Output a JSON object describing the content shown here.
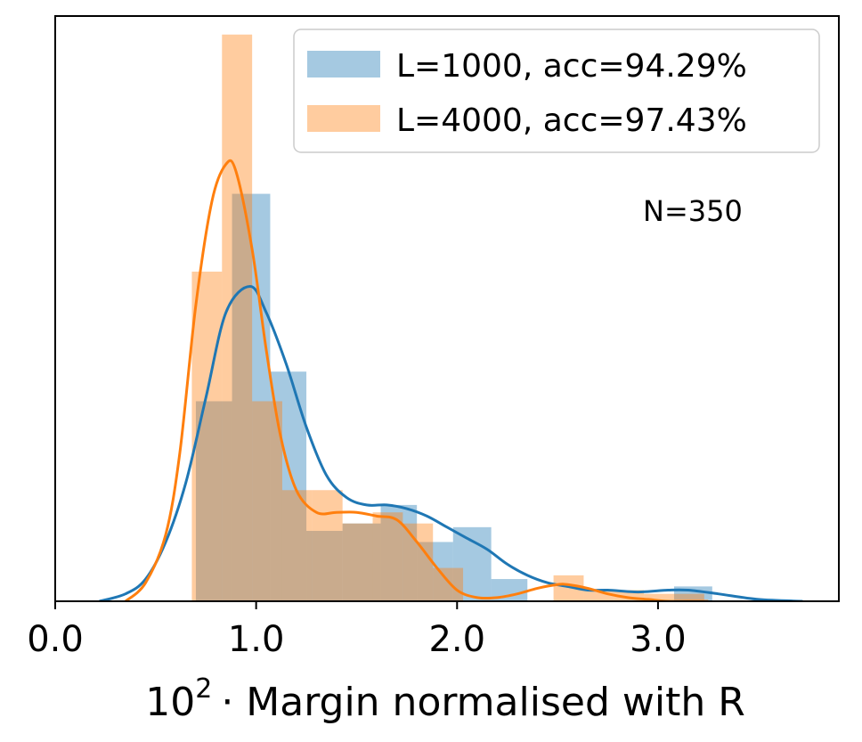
{
  "chart_data": {
    "type": "histogram",
    "xlim": [
      0.0,
      3.9
    ],
    "ylim": [
      0,
      1.58
    ],
    "xlabel_base": "10",
    "xlabel_exp": "2",
    "xlabel_rest": "· Margin normalised with R",
    "xticks": [
      0.0,
      1.0,
      2.0,
      3.0
    ],
    "xtick_labels": [
      "0.0",
      "1.0",
      "2.0",
      "3.0"
    ],
    "annotation": "N=350",
    "legend_position": "upper right",
    "series": [
      {
        "name": "L=1000, acc=94.29%",
        "color": "#1f77b4",
        "bar_alpha": 0.4,
        "bins": [
          {
            "x0": 0.7,
            "x1": 0.88,
            "value": 0.54
          },
          {
            "x0": 0.88,
            "x1": 1.07,
            "value": 1.1
          },
          {
            "x0": 1.07,
            "x1": 1.25,
            "value": 0.62
          },
          {
            "x0": 1.25,
            "x1": 1.43,
            "value": 0.19
          },
          {
            "x0": 1.43,
            "x1": 1.62,
            "value": 0.21
          },
          {
            "x0": 1.62,
            "x1": 1.8,
            "value": 0.26
          },
          {
            "x0": 1.8,
            "x1": 1.98,
            "value": 0.16
          },
          {
            "x0": 1.98,
            "x1": 2.17,
            "value": 0.2
          },
          {
            "x0": 2.17,
            "x1": 2.35,
            "value": 0.06
          },
          {
            "x0": 2.35,
            "x1": 2.53,
            "value": 0.0
          },
          {
            "x0": 2.53,
            "x1": 2.72,
            "value": 0.0
          },
          {
            "x0": 2.72,
            "x1": 2.9,
            "value": 0.0
          },
          {
            "x0": 2.9,
            "x1": 3.08,
            "value": 0.0
          },
          {
            "x0": 3.08,
            "x1": 3.27,
            "value": 0.04
          }
        ],
        "kde": {
          "x": [
            0.22,
            0.35,
            0.45,
            0.55,
            0.65,
            0.75,
            0.85,
            0.97,
            1.05,
            1.15,
            1.25,
            1.35,
            1.45,
            1.55,
            1.65,
            1.75,
            1.85,
            1.95,
            2.05,
            2.15,
            2.25,
            2.35,
            2.45,
            2.55,
            2.65,
            2.75,
            2.9,
            3.05,
            3.15,
            3.3,
            3.5,
            3.72
          ],
          "y": [
            0.0,
            0.02,
            0.06,
            0.16,
            0.32,
            0.55,
            0.78,
            0.85,
            0.78,
            0.64,
            0.47,
            0.34,
            0.28,
            0.26,
            0.26,
            0.25,
            0.23,
            0.2,
            0.17,
            0.14,
            0.1,
            0.07,
            0.05,
            0.04,
            0.03,
            0.03,
            0.025,
            0.03,
            0.03,
            0.02,
            0.005,
            0.0
          ]
        }
      },
      {
        "name": "L=4000, acc=97.43%",
        "color": "#ff7f0e",
        "bar_alpha": 0.4,
        "bins": [
          {
            "x0": 0.68,
            "x1": 0.83,
            "value": 0.89
          },
          {
            "x0": 0.83,
            "x1": 0.98,
            "value": 1.53
          },
          {
            "x0": 0.98,
            "x1": 1.13,
            "value": 0.54
          },
          {
            "x0": 1.13,
            "x1": 1.28,
            "value": 0.3
          },
          {
            "x0": 1.28,
            "x1": 1.43,
            "value": 0.3
          },
          {
            "x0": 1.43,
            "x1": 1.58,
            "value": 0.21
          },
          {
            "x0": 1.58,
            "x1": 1.73,
            "value": 0.24
          },
          {
            "x0": 1.73,
            "x1": 1.88,
            "value": 0.21
          },
          {
            "x0": 1.88,
            "x1": 2.03,
            "value": 0.09
          },
          {
            "x0": 2.03,
            "x1": 2.18,
            "value": 0.0
          },
          {
            "x0": 2.18,
            "x1": 2.33,
            "value": 0.0
          },
          {
            "x0": 2.33,
            "x1": 2.48,
            "value": 0.0
          },
          {
            "x0": 2.48,
            "x1": 2.63,
            "value": 0.07
          },
          {
            "x0": 2.63,
            "x1": 2.78,
            "value": 0.03
          },
          {
            "x0": 2.78,
            "x1": 2.93,
            "value": 0.03
          },
          {
            "x0": 2.93,
            "x1": 3.08,
            "value": 0.02
          },
          {
            "x0": 3.08,
            "x1": 3.23,
            "value": 0.02
          }
        ],
        "kde": {
          "x": [
            0.35,
            0.45,
            0.55,
            0.62,
            0.7,
            0.78,
            0.85,
            0.9,
            0.98,
            1.05,
            1.12,
            1.2,
            1.3,
            1.4,
            1.5,
            1.6,
            1.7,
            1.8,
            1.9,
            2.0,
            2.1,
            2.2,
            2.3,
            2.4,
            2.5,
            2.55,
            2.65,
            2.75,
            2.85,
            2.95,
            3.05,
            3.15,
            3.25
          ],
          "y": [
            0.0,
            0.05,
            0.18,
            0.4,
            0.8,
            1.08,
            1.18,
            1.16,
            0.95,
            0.68,
            0.45,
            0.3,
            0.24,
            0.24,
            0.24,
            0.23,
            0.22,
            0.16,
            0.09,
            0.03,
            0.01,
            0.01,
            0.02,
            0.035,
            0.045,
            0.045,
            0.035,
            0.02,
            0.01,
            0.005,
            0.0,
            0.0,
            0.0
          ]
        }
      }
    ]
  }
}
